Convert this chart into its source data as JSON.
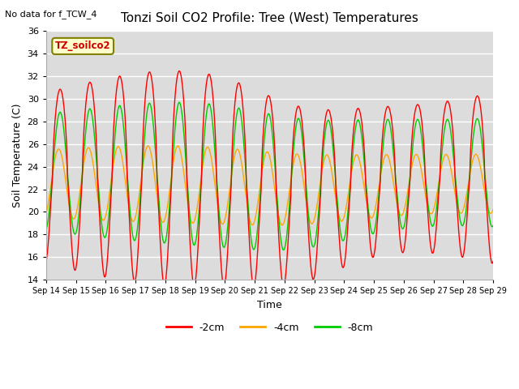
{
  "title": "Tonzi Soil CO2 Profile: Tree (West) Temperatures",
  "subtitle": "No data for f_TCW_4",
  "xlabel": "Time",
  "ylabel": "Soil Temperature (C)",
  "ylim": [
    14,
    36
  ],
  "xlim": [
    0,
    15
  ],
  "xtick_labels": [
    "Sep 14",
    "Sep 15",
    "Sep 16",
    "Sep 17",
    "Sep 18",
    "Sep 19",
    "Sep 20",
    "Sep 21",
    "Sep 22",
    "Sep 23",
    "Sep 24",
    "Sep 25",
    "Sep 26",
    "Sep 27",
    "Sep 28",
    "Sep 29"
  ],
  "legend_label": "TZ_soilco2",
  "line_colors": [
    "#ff0000",
    "#ffa500",
    "#00cc00"
  ],
  "line_labels": [
    "-2cm",
    "-4cm",
    "-8cm"
  ],
  "background_color": "#dcdcdc",
  "yticks": [
    14,
    16,
    18,
    20,
    22,
    24,
    26,
    28,
    30,
    32,
    34,
    36
  ]
}
